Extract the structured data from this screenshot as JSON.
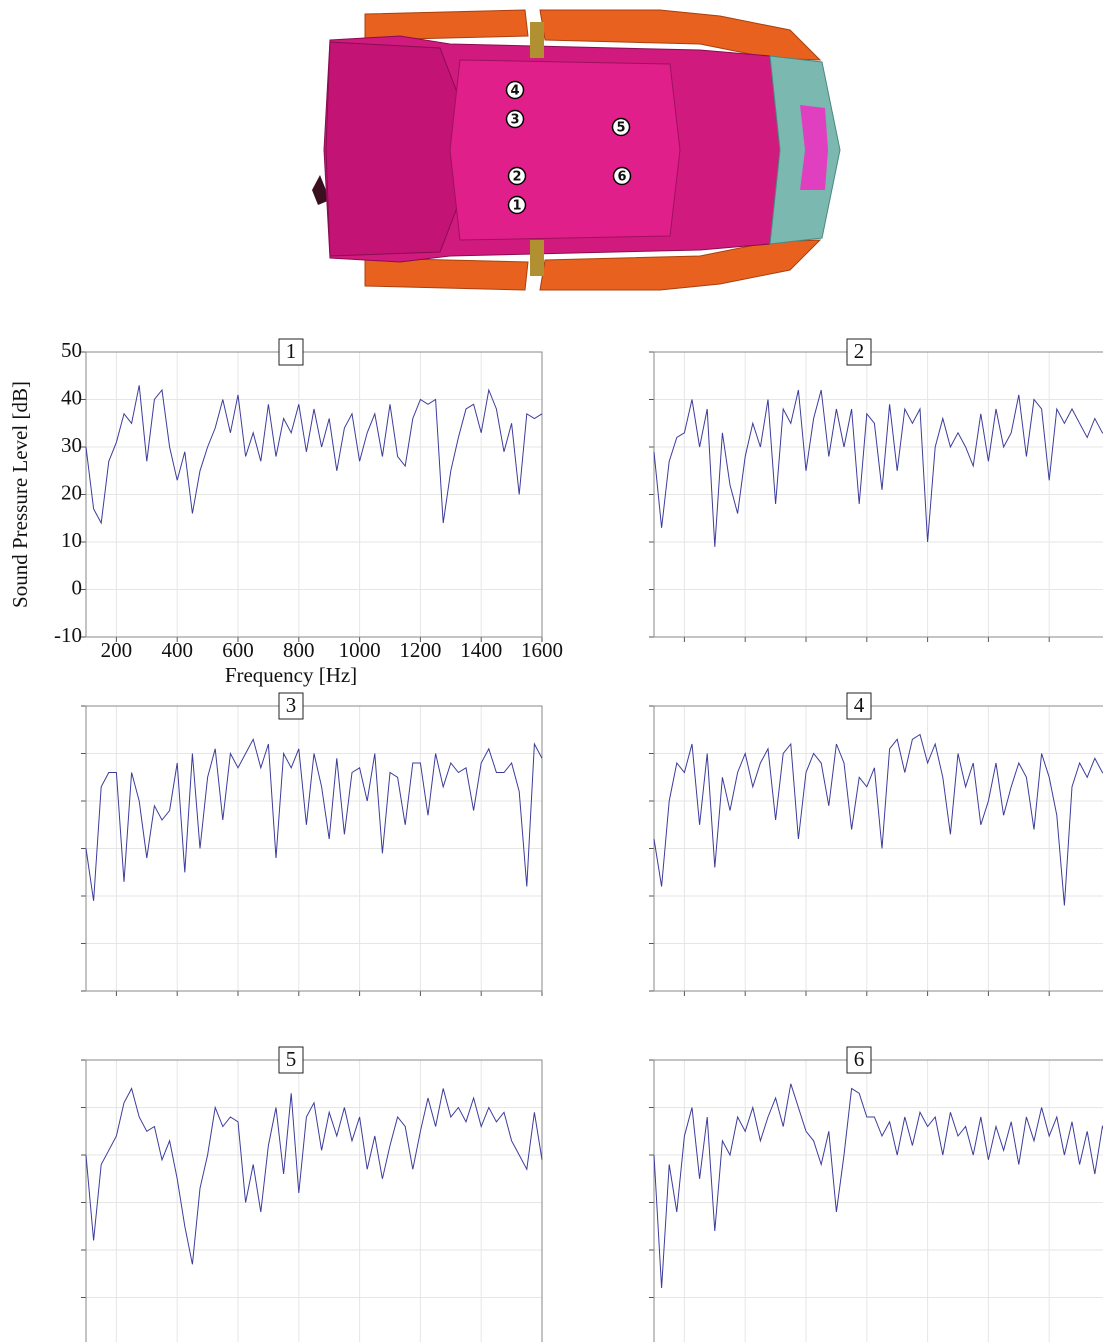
{
  "diagram": {
    "markers": [
      "1",
      "2",
      "3",
      "4",
      "5",
      "6"
    ]
  },
  "chart_data": [
    {
      "type": "line",
      "title": "1",
      "x_label": "Frequency [Hz]",
      "y_label": "Sound Pressure Level [dB]",
      "tick_labels": true,
      "grid": true,
      "xlim": [
        100,
        1600
      ],
      "ylim": [
        -10,
        50
      ],
      "xticks": [
        200,
        400,
        600,
        800,
        1000,
        1200,
        1400,
        1600
      ],
      "yticks": [
        -10,
        0,
        10,
        20,
        30,
        40,
        50
      ],
      "x": [
        100,
        125,
        150,
        175,
        200,
        225,
        250,
        275,
        300,
        325,
        350,
        375,
        400,
        425,
        450,
        475,
        500,
        525,
        550,
        575,
        600,
        625,
        650,
        675,
        700,
        725,
        750,
        775,
        800,
        825,
        850,
        875,
        900,
        925,
        950,
        975,
        1000,
        1025,
        1050,
        1075,
        1100,
        1125,
        1150,
        1175,
        1200,
        1225,
        1250,
        1275,
        1300,
        1325,
        1350,
        1375,
        1400,
        1425,
        1450,
        1475,
        1500,
        1525,
        1550,
        1575,
        1600
      ],
      "series": [
        {
          "color": "#3c3c9c",
          "values": [
            30,
            17,
            14,
            27,
            31,
            37,
            35,
            43,
            27,
            40,
            42,
            30,
            23,
            29,
            16,
            25,
            30,
            34,
            40,
            33,
            41,
            28,
            33,
            27,
            39,
            28,
            36,
            33,
            39,
            29,
            38,
            30,
            36,
            25,
            34,
            37,
            27,
            33,
            37,
            28,
            39,
            28,
            26,
            36,
            40,
            39,
            40,
            14,
            25,
            32,
            38,
            39,
            33,
            42,
            38,
            29,
            35,
            20,
            37,
            36,
            37
          ]
        }
      ]
    },
    {
      "type": "line",
      "title": "2",
      "tick_labels": false,
      "grid": true,
      "xlim": [
        100,
        1600
      ],
      "ylim": [
        -10,
        50
      ],
      "xticks": [
        200,
        400,
        600,
        800,
        1000,
        1200,
        1400,
        1600
      ],
      "yticks": [
        -10,
        0,
        10,
        20,
        30,
        40,
        50
      ],
      "x": [
        100,
        125,
        150,
        175,
        200,
        225,
        250,
        275,
        300,
        325,
        350,
        375,
        400,
        425,
        450,
        475,
        500,
        525,
        550,
        575,
        600,
        625,
        650,
        675,
        700,
        725,
        750,
        775,
        800,
        825,
        850,
        875,
        900,
        925,
        950,
        975,
        1000,
        1025,
        1050,
        1075,
        1100,
        1125,
        1150,
        1175,
        1200,
        1225,
        1250,
        1275,
        1300,
        1325,
        1350,
        1375,
        1400,
        1425,
        1450,
        1475,
        1500,
        1525,
        1550,
        1575,
        1600
      ],
      "series": [
        {
          "color": "#3c3c9c",
          "values": [
            29,
            13,
            27,
            32,
            33,
            40,
            30,
            38,
            9,
            33,
            22,
            16,
            28,
            35,
            30,
            40,
            18,
            38,
            35,
            42,
            25,
            36,
            42,
            28,
            38,
            30,
            38,
            18,
            37,
            35,
            21,
            39,
            25,
            38,
            35,
            38,
            10,
            30,
            36,
            30,
            33,
            30,
            26,
            37,
            27,
            38,
            30,
            33,
            41,
            28,
            40,
            38,
            23,
            38,
            35,
            38,
            35,
            32,
            36,
            33,
            32
          ]
        }
      ]
    },
    {
      "type": "line",
      "title": "3",
      "tick_labels": false,
      "grid": true,
      "xlim": [
        100,
        1600
      ],
      "ylim": [
        -10,
        50
      ],
      "xticks": [
        200,
        400,
        600,
        800,
        1000,
        1200,
        1400,
        1600
      ],
      "yticks": [
        -10,
        0,
        10,
        20,
        30,
        40,
        50
      ],
      "x": [
        100,
        125,
        150,
        175,
        200,
        225,
        250,
        275,
        300,
        325,
        350,
        375,
        400,
        425,
        450,
        475,
        500,
        525,
        550,
        575,
        600,
        625,
        650,
        675,
        700,
        725,
        750,
        775,
        800,
        825,
        850,
        875,
        900,
        925,
        950,
        975,
        1000,
        1025,
        1050,
        1075,
        1100,
        1125,
        1150,
        1175,
        1200,
        1225,
        1250,
        1275,
        1300,
        1325,
        1350,
        1375,
        1400,
        1425,
        1450,
        1475,
        1500,
        1525,
        1550,
        1575,
        1600
      ],
      "series": [
        {
          "color": "#3c3c9c",
          "values": [
            20,
            9,
            33,
            36,
            36,
            13,
            36,
            30,
            18,
            29,
            26,
            28,
            38,
            15,
            40,
            20,
            35,
            41,
            26,
            40,
            37,
            40,
            43,
            37,
            42,
            18,
            40,
            37,
            41,
            25,
            40,
            33,
            22,
            39,
            23,
            36,
            37,
            30,
            40,
            19,
            36,
            35,
            25,
            38,
            38,
            27,
            40,
            33,
            38,
            36,
            37,
            28,
            38,
            41,
            36,
            36,
            38,
            32,
            12,
            42,
            39
          ]
        }
      ]
    },
    {
      "type": "line",
      "title": "4",
      "tick_labels": false,
      "grid": true,
      "xlim": [
        100,
        1600
      ],
      "ylim": [
        -10,
        50
      ],
      "xticks": [
        200,
        400,
        600,
        800,
        1000,
        1200,
        1400,
        1600
      ],
      "yticks": [
        -10,
        0,
        10,
        20,
        30,
        40,
        50
      ],
      "x": [
        100,
        125,
        150,
        175,
        200,
        225,
        250,
        275,
        300,
        325,
        350,
        375,
        400,
        425,
        450,
        475,
        500,
        525,
        550,
        575,
        600,
        625,
        650,
        675,
        700,
        725,
        750,
        775,
        800,
        825,
        850,
        875,
        900,
        925,
        950,
        975,
        1000,
        1025,
        1050,
        1075,
        1100,
        1125,
        1150,
        1175,
        1200,
        1225,
        1250,
        1275,
        1300,
        1325,
        1350,
        1375,
        1400,
        1425,
        1450,
        1475,
        1500,
        1525,
        1550,
        1575,
        1600
      ],
      "series": [
        {
          "color": "#3c3c9c",
          "values": [
            22,
            12,
            30,
            38,
            36,
            42,
            25,
            40,
            16,
            35,
            28,
            36,
            40,
            33,
            38,
            41,
            26,
            40,
            42,
            22,
            36,
            40,
            38,
            29,
            42,
            38,
            24,
            35,
            33,
            37,
            20,
            41,
            43,
            36,
            43,
            44,
            38,
            42,
            35,
            23,
            40,
            33,
            38,
            25,
            30,
            38,
            27,
            33,
            38,
            35,
            24,
            40,
            35,
            27,
            8,
            33,
            38,
            35,
            39,
            36,
            35
          ]
        }
      ]
    },
    {
      "type": "line",
      "title": "5",
      "tick_labels": false,
      "grid": true,
      "xlim": [
        100,
        1600
      ],
      "ylim": [
        -10,
        50
      ],
      "xticks": [
        200,
        400,
        600,
        800,
        1000,
        1200,
        1400,
        1600
      ],
      "yticks": [
        -10,
        0,
        10,
        20,
        30,
        40,
        50
      ],
      "x": [
        100,
        125,
        150,
        175,
        200,
        225,
        250,
        275,
        300,
        325,
        350,
        375,
        400,
        425,
        450,
        475,
        500,
        525,
        550,
        575,
        600,
        625,
        650,
        675,
        700,
        725,
        750,
        775,
        800,
        825,
        850,
        875,
        900,
        925,
        950,
        975,
        1000,
        1025,
        1050,
        1075,
        1100,
        1125,
        1150,
        1175,
        1200,
        1225,
        1250,
        1275,
        1300,
        1325,
        1350,
        1375,
        1400,
        1425,
        1450,
        1475,
        1500,
        1525,
        1550,
        1575,
        1600
      ],
      "series": [
        {
          "color": "#3c3c9c",
          "values": [
            30,
            12,
            28,
            31,
            34,
            41,
            44,
            38,
            35,
            36,
            29,
            33,
            25,
            15,
            7,
            23,
            30,
            40,
            36,
            38,
            37,
            20,
            28,
            18,
            32,
            40,
            26,
            43,
            22,
            38,
            41,
            31,
            39,
            34,
            40,
            33,
            38,
            27,
            34,
            25,
            32,
            38,
            36,
            27,
            35,
            42,
            36,
            44,
            38,
            40,
            37,
            42,
            36,
            40,
            37,
            39,
            33,
            30,
            27,
            39,
            29
          ]
        }
      ]
    },
    {
      "type": "line",
      "title": "6",
      "tick_labels": false,
      "grid": true,
      "xlim": [
        100,
        1600
      ],
      "ylim": [
        -10,
        50
      ],
      "xticks": [
        200,
        400,
        600,
        800,
        1000,
        1200,
        1400,
        1600
      ],
      "yticks": [
        -10,
        0,
        10,
        20,
        30,
        40,
        50
      ],
      "x": [
        100,
        125,
        150,
        175,
        200,
        225,
        250,
        275,
        300,
        325,
        350,
        375,
        400,
        425,
        450,
        475,
        500,
        525,
        550,
        575,
        600,
        625,
        650,
        675,
        700,
        725,
        750,
        775,
        800,
        825,
        850,
        875,
        900,
        925,
        950,
        975,
        1000,
        1025,
        1050,
        1075,
        1100,
        1125,
        1150,
        1175,
        1200,
        1225,
        1250,
        1275,
        1300,
        1325,
        1350,
        1375,
        1400,
        1425,
        1450,
        1475,
        1500,
        1525,
        1550,
        1575,
        1600
      ],
      "series": [
        {
          "color": "#3c3c9c",
          "values": [
            30,
            2,
            28,
            18,
            34,
            40,
            25,
            38,
            14,
            33,
            30,
            38,
            35,
            40,
            33,
            38,
            42,
            36,
            45,
            40,
            35,
            33,
            28,
            35,
            18,
            30,
            44,
            43,
            38,
            38,
            34,
            37,
            30,
            38,
            32,
            39,
            36,
            38,
            30,
            39,
            34,
            36,
            30,
            38,
            29,
            36,
            31,
            37,
            28,
            38,
            33,
            40,
            34,
            38,
            30,
            37,
            28,
            35,
            26,
            36,
            33
          ]
        }
      ]
    }
  ]
}
